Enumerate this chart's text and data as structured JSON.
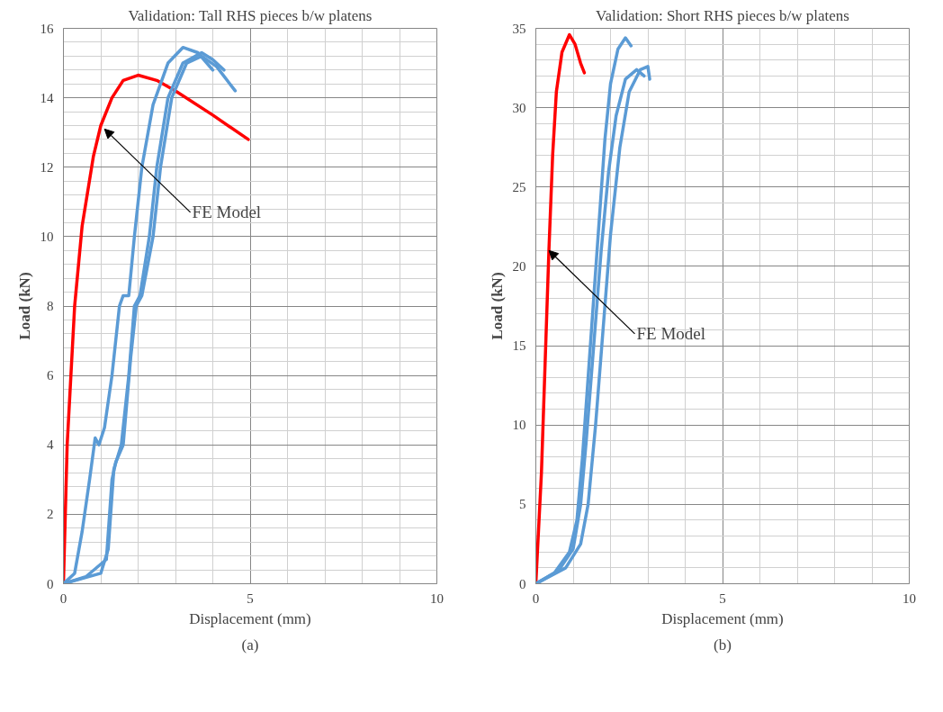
{
  "chart_data": [
    {
      "type": "line",
      "title": "Validation: Tall RHS pieces b/w platens",
      "xlabel": "Displacement (mm)",
      "ylabel": "Load (kN)",
      "xlim": [
        0,
        10
      ],
      "xticks": [
        0,
        5,
        10
      ],
      "ylim": [
        0,
        16
      ],
      "yticks": [
        0,
        2,
        4,
        6,
        8,
        10,
        12,
        14,
        16
      ],
      "grid": true,
      "marker": "none",
      "line_style": "solid",
      "annotations": [
        {
          "text": "FE Model",
          "x": 1.1,
          "y": 13.1
        },
        "(a)"
      ],
      "series": [
        {
          "color": "#ff0000",
          "x": [
            0,
            0.05,
            0.1,
            0.2,
            0.3,
            0.5,
            0.8,
            1.0,
            1.3,
            1.6,
            2.0,
            2.5,
            3.0,
            4.0,
            4.95
          ],
          "values": [
            0,
            2,
            4,
            6,
            8,
            10.3,
            12.3,
            13.2,
            14,
            14.5,
            14.65,
            14.5,
            14.2,
            13.5,
            12.8
          ]
        },
        {
          "color": "#5b9bd5",
          "x": [
            0,
            0.3,
            0.5,
            0.7,
            0.85,
            0.95,
            1.1,
            1.3,
            1.5,
            1.6,
            1.75,
            1.9,
            2.1,
            2.4,
            2.8,
            3.2,
            3.6,
            4.0
          ],
          "values": [
            0,
            0.3,
            1.5,
            3,
            4.2,
            4,
            4.5,
            6,
            8,
            8.3,
            8.3,
            10,
            12,
            13.8,
            15,
            15.45,
            15.3,
            14.8
          ]
        },
        {
          "color": "#5b9bd5",
          "x": [
            0,
            0.6,
            1.15,
            1.3,
            1.4,
            1.6,
            1.8,
            1.95,
            2.1,
            2.4,
            2.6,
            2.9,
            3.3,
            3.7,
            4.1,
            4.6
          ],
          "values": [
            0,
            0.2,
            0.7,
            3,
            3.5,
            4,
            6.5,
            8,
            8.3,
            10,
            12,
            14,
            15,
            15.2,
            14.9,
            14.2
          ]
        },
        {
          "color": "#5b9bd5",
          "x": [
            0,
            1.0,
            1.2,
            1.35,
            1.55,
            1.75,
            1.9,
            2.05,
            2.3,
            2.5,
            2.8,
            3.2,
            3.7,
            4.0,
            4.3
          ],
          "values": [
            0,
            0.3,
            1,
            3.3,
            4,
            6,
            8,
            8.3,
            10,
            12,
            14,
            15,
            15.3,
            15.1,
            14.8
          ]
        }
      ]
    },
    {
      "type": "line",
      "title": "Validation: Short RHS pieces b/w platens",
      "xlabel": "Displacement (mm)",
      "ylabel": "Load (kN)",
      "xlim": [
        0,
        10
      ],
      "xticks": [
        0,
        5,
        10
      ],
      "ylim": [
        0,
        35
      ],
      "yticks": [
        0,
        5,
        10,
        15,
        20,
        25,
        30,
        35
      ],
      "grid": true,
      "marker": "none",
      "line_style": "solid",
      "annotations": [
        {
          "text": "FE Model",
          "x": 0.35,
          "y": 21
        },
        "(b)"
      ],
      "series": [
        {
          "color": "#ff0000",
          "x": [
            0,
            0.15,
            0.25,
            0.35,
            0.45,
            0.55,
            0.7,
            0.9,
            1.05,
            1.2,
            1.3
          ],
          "values": [
            0,
            7,
            14,
            21,
            27,
            31,
            33.5,
            34.6,
            34,
            32.8,
            32.2
          ]
        },
        {
          "color": "#5b9bd5",
          "x": [
            0,
            0.5,
            0.9,
            1.1,
            1.25,
            1.4,
            1.55,
            1.7,
            1.85,
            2.0,
            2.2,
            2.4,
            2.55
          ],
          "values": [
            0,
            0.7,
            2,
            4,
            8,
            13,
            18,
            23,
            28,
            31.5,
            33.7,
            34.4,
            33.9
          ]
        },
        {
          "color": "#5b9bd5",
          "x": [
            0,
            0.6,
            1.0,
            1.2,
            1.35,
            1.55,
            1.75,
            1.95,
            2.15,
            2.4,
            2.7,
            2.9
          ],
          "values": [
            0,
            0.8,
            2.2,
            5,
            9,
            15,
            21,
            26,
            29.5,
            31.8,
            32.4,
            32
          ]
        },
        {
          "color": "#5b9bd5",
          "x": [
            0,
            0.8,
            1.2,
            1.4,
            1.6,
            1.8,
            2.0,
            2.25,
            2.5,
            2.8,
            3.0,
            3.05
          ],
          "values": [
            0,
            1,
            2.5,
            5,
            10,
            16,
            22,
            27.5,
            31,
            32.4,
            32.6,
            31.8
          ]
        }
      ]
    }
  ]
}
